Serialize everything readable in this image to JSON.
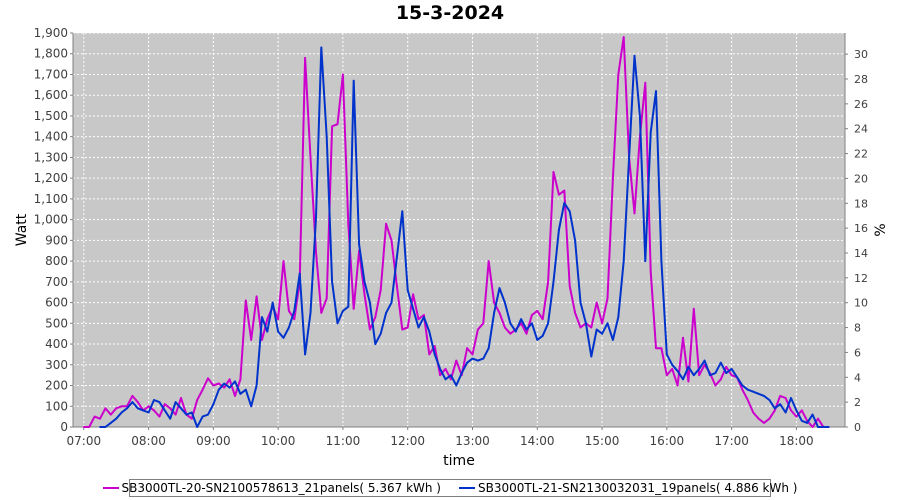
{
  "chart_data": {
    "type": "line",
    "title": "15-3-2024",
    "xlabel": "time",
    "ylabel": "Watt",
    "y2label": "%",
    "x_ticks": [
      "07:00",
      "08:00",
      "09:00",
      "10:00",
      "11:00",
      "12:00",
      "13:00",
      "14:00",
      "15:00",
      "16:00",
      "17:00",
      "18:00"
    ],
    "y_ticks": [
      "0",
      "100",
      "200",
      "300",
      "400",
      "500",
      "600",
      "700",
      "800",
      "900",
      "1,000",
      "1,100",
      "1,200",
      "1,300",
      "1,400",
      "1,500",
      "1,600",
      "1,700",
      "1,800",
      "1,900"
    ],
    "y2_ticks": [
      "0",
      "2",
      "4",
      "6",
      "8",
      "10",
      "12",
      "14",
      "16",
      "18",
      "20",
      "22",
      "24",
      "26",
      "28",
      "30"
    ],
    "xlim": [
      "06:50",
      "18:45"
    ],
    "ylim": [
      0,
      1900
    ],
    "y2lim": [
      0,
      31.7
    ],
    "grid": true,
    "legend_position": "bottom",
    "background_color": "#c8c8c8",
    "series": [
      {
        "name": "SB3000TL-20-SN2100578613_21panels( 5.367 kWh )",
        "color": "#cc00cc",
        "points": [
          [
            "07:00",
            0
          ],
          [
            "07:05",
            0
          ],
          [
            "07:10",
            50
          ],
          [
            "07:15",
            40
          ],
          [
            "07:20",
            90
          ],
          [
            "07:25",
            60
          ],
          [
            "07:30",
            90
          ],
          [
            "07:35",
            100
          ],
          [
            "07:40",
            100
          ],
          [
            "07:45",
            150
          ],
          [
            "07:50",
            120
          ],
          [
            "07:55",
            80
          ],
          [
            "08:00",
            100
          ],
          [
            "08:05",
            80
          ],
          [
            "08:10",
            50
          ],
          [
            "08:15",
            110
          ],
          [
            "08:20",
            90
          ],
          [
            "08:25",
            60
          ],
          [
            "08:30",
            140
          ],
          [
            "08:35",
            60
          ],
          [
            "08:40",
            40
          ],
          [
            "08:45",
            130
          ],
          [
            "08:50",
            180
          ],
          [
            "08:55",
            235
          ],
          [
            "09:00",
            200
          ],
          [
            "09:05",
            210
          ],
          [
            "09:10",
            190
          ],
          [
            "09:15",
            230
          ],
          [
            "09:20",
            150
          ],
          [
            "09:25",
            230
          ],
          [
            "09:30",
            610
          ],
          [
            "09:35",
            420
          ],
          [
            "09:40",
            630
          ],
          [
            "09:45",
            420
          ],
          [
            "09:50",
            520
          ],
          [
            "09:55",
            580
          ],
          [
            "10:00",
            520
          ],
          [
            "10:05",
            800
          ],
          [
            "10:10",
            560
          ],
          [
            "10:15",
            520
          ],
          [
            "10:20",
            700
          ],
          [
            "10:25",
            1780
          ],
          [
            "10:30",
            1300
          ],
          [
            "10:35",
            850
          ],
          [
            "10:40",
            550
          ],
          [
            "10:45",
            620
          ],
          [
            "10:50",
            1450
          ],
          [
            "10:55",
            1460
          ],
          [
            "11:00",
            1700
          ],
          [
            "11:05",
            980
          ],
          [
            "11:10",
            570
          ],
          [
            "11:15",
            850
          ],
          [
            "11:20",
            640
          ],
          [
            "11:25",
            470
          ],
          [
            "11:30",
            530
          ],
          [
            "11:35",
            660
          ],
          [
            "11:40",
            980
          ],
          [
            "11:45",
            900
          ],
          [
            "11:50",
            680
          ],
          [
            "11:55",
            470
          ],
          [
            "12:00",
            480
          ],
          [
            "12:05",
            640
          ],
          [
            "12:10",
            520
          ],
          [
            "12:15",
            540
          ],
          [
            "12:20",
            350
          ],
          [
            "12:25",
            390
          ],
          [
            "12:30",
            250
          ],
          [
            "12:35",
            280
          ],
          [
            "12:40",
            230
          ],
          [
            "12:45",
            320
          ],
          [
            "12:50",
            250
          ],
          [
            "12:55",
            380
          ],
          [
            "13:00",
            350
          ],
          [
            "13:05",
            470
          ],
          [
            "13:10",
            500
          ],
          [
            "13:15",
            800
          ],
          [
            "13:20",
            600
          ],
          [
            "13:25",
            550
          ],
          [
            "13:30",
            480
          ],
          [
            "13:35",
            450
          ],
          [
            "13:40",
            470
          ],
          [
            "13:45",
            500
          ],
          [
            "13:50",
            450
          ],
          [
            "13:55",
            540
          ],
          [
            "14:00",
            560
          ],
          [
            "14:05",
            520
          ],
          [
            "14:10",
            700
          ],
          [
            "14:15",
            1230
          ],
          [
            "14:20",
            1120
          ],
          [
            "14:25",
            1140
          ],
          [
            "14:30",
            680
          ],
          [
            "14:35",
            550
          ],
          [
            "14:40",
            480
          ],
          [
            "14:45",
            500
          ],
          [
            "14:50",
            480
          ],
          [
            "14:55",
            600
          ],
          [
            "15:00",
            500
          ],
          [
            "15:05",
            620
          ],
          [
            "15:10",
            1200
          ],
          [
            "15:15",
            1700
          ],
          [
            "15:20",
            1880
          ],
          [
            "15:25",
            1300
          ],
          [
            "15:30",
            1030
          ],
          [
            "15:35",
            1400
          ],
          [
            "15:40",
            1660
          ],
          [
            "15:45",
            750
          ],
          [
            "15:50",
            380
          ],
          [
            "15:55",
            380
          ],
          [
            "16:00",
            250
          ],
          [
            "16:05",
            280
          ],
          [
            "16:10",
            200
          ],
          [
            "16:15",
            430
          ],
          [
            "16:20",
            220
          ],
          [
            "16:25",
            570
          ],
          [
            "16:30",
            250
          ],
          [
            "16:35",
            300
          ],
          [
            "16:40",
            260
          ],
          [
            "16:45",
            200
          ],
          [
            "16:50",
            230
          ],
          [
            "16:55",
            290
          ],
          [
            "17:00",
            250
          ],
          [
            "17:05",
            240
          ],
          [
            "17:10",
            180
          ],
          [
            "17:15",
            130
          ],
          [
            "17:20",
            70
          ],
          [
            "17:25",
            40
          ],
          [
            "17:30",
            20
          ],
          [
            "17:35",
            40
          ],
          [
            "17:40",
            80
          ],
          [
            "17:45",
            150
          ],
          [
            "17:50",
            140
          ],
          [
            "17:55",
            80
          ],
          [
            "18:00",
            50
          ],
          [
            "18:05",
            80
          ],
          [
            "18:10",
            30
          ],
          [
            "18:15",
            0
          ],
          [
            "18:20",
            40
          ],
          [
            "18:25",
            0
          ],
          [
            "18:30",
            0
          ]
        ]
      },
      {
        "name": "SB3000TL-21-SN2130032031_19panels( 4.886 kWh )",
        "color": "#0033cc",
        "points": [
          [
            "07:15",
            0
          ],
          [
            "07:20",
            0
          ],
          [
            "07:25",
            20
          ],
          [
            "07:30",
            40
          ],
          [
            "07:35",
            70
          ],
          [
            "07:40",
            90
          ],
          [
            "07:45",
            120
          ],
          [
            "07:50",
            90
          ],
          [
            "07:55",
            80
          ],
          [
            "08:00",
            70
          ],
          [
            "08:05",
            130
          ],
          [
            "08:10",
            120
          ],
          [
            "08:15",
            80
          ],
          [
            "08:20",
            40
          ],
          [
            "08:25",
            120
          ],
          [
            "08:30",
            90
          ],
          [
            "08:35",
            60
          ],
          [
            "08:40",
            70
          ],
          [
            "08:45",
            0
          ],
          [
            "08:50",
            50
          ],
          [
            "08:55",
            60
          ],
          [
            "09:00",
            110
          ],
          [
            "09:05",
            180
          ],
          [
            "09:10",
            210
          ],
          [
            "09:15",
            190
          ],
          [
            "09:20",
            220
          ],
          [
            "09:25",
            160
          ],
          [
            "09:30",
            180
          ],
          [
            "09:35",
            100
          ],
          [
            "09:40",
            200
          ],
          [
            "09:45",
            530
          ],
          [
            "09:50",
            460
          ],
          [
            "09:55",
            600
          ],
          [
            "10:00",
            460
          ],
          [
            "10:05",
            430
          ],
          [
            "10:10",
            480
          ],
          [
            "10:15",
            560
          ],
          [
            "10:20",
            740
          ],
          [
            "10:25",
            350
          ],
          [
            "10:30",
            550
          ],
          [
            "10:35",
            1000
          ],
          [
            "10:40",
            1830
          ],
          [
            "10:45",
            1400
          ],
          [
            "10:50",
            700
          ],
          [
            "10:55",
            500
          ],
          [
            "11:00",
            560
          ],
          [
            "11:05",
            580
          ],
          [
            "11:10",
            1670
          ],
          [
            "11:15",
            880
          ],
          [
            "11:20",
            700
          ],
          [
            "11:25",
            600
          ],
          [
            "11:30",
            400
          ],
          [
            "11:35",
            450
          ],
          [
            "11:40",
            550
          ],
          [
            "11:45",
            600
          ],
          [
            "11:50",
            820
          ],
          [
            "11:55",
            1040
          ],
          [
            "12:00",
            660
          ],
          [
            "12:05",
            570
          ],
          [
            "12:10",
            480
          ],
          [
            "12:15",
            530
          ],
          [
            "12:20",
            460
          ],
          [
            "12:25",
            350
          ],
          [
            "12:30",
            280
          ],
          [
            "12:35",
            230
          ],
          [
            "12:40",
            250
          ],
          [
            "12:45",
            200
          ],
          [
            "12:50",
            260
          ],
          [
            "12:55",
            310
          ],
          [
            "13:00",
            330
          ],
          [
            "13:05",
            320
          ],
          [
            "13:10",
            330
          ],
          [
            "13:15",
            380
          ],
          [
            "13:20",
            550
          ],
          [
            "13:25",
            670
          ],
          [
            "13:30",
            600
          ],
          [
            "13:35",
            500
          ],
          [
            "13:40",
            460
          ],
          [
            "13:45",
            520
          ],
          [
            "13:50",
            470
          ],
          [
            "13:55",
            500
          ],
          [
            "14:00",
            420
          ],
          [
            "14:05",
            440
          ],
          [
            "14:10",
            500
          ],
          [
            "14:15",
            700
          ],
          [
            "14:20",
            950
          ],
          [
            "14:25",
            1080
          ],
          [
            "14:30",
            1040
          ],
          [
            "14:35",
            900
          ],
          [
            "14:40",
            600
          ],
          [
            "14:45",
            500
          ],
          [
            "14:50",
            340
          ],
          [
            "14:55",
            470
          ],
          [
            "15:00",
            450
          ],
          [
            "15:05",
            500
          ],
          [
            "15:10",
            420
          ],
          [
            "15:15",
            530
          ],
          [
            "15:20",
            800
          ],
          [
            "15:25",
            1300
          ],
          [
            "15:30",
            1790
          ],
          [
            "15:35",
            1500
          ],
          [
            "15:40",
            800
          ],
          [
            "15:45",
            1420
          ],
          [
            "15:50",
            1620
          ],
          [
            "15:55",
            800
          ],
          [
            "16:00",
            350
          ],
          [
            "16:05",
            300
          ],
          [
            "16:10",
            270
          ],
          [
            "16:15",
            230
          ],
          [
            "16:20",
            290
          ],
          [
            "16:25",
            250
          ],
          [
            "16:30",
            280
          ],
          [
            "16:35",
            320
          ],
          [
            "16:40",
            250
          ],
          [
            "16:45",
            260
          ],
          [
            "16:50",
            310
          ],
          [
            "16:55",
            260
          ],
          [
            "17:00",
            280
          ],
          [
            "17:05",
            240
          ],
          [
            "17:10",
            200
          ],
          [
            "17:15",
            180
          ],
          [
            "17:20",
            170
          ],
          [
            "17:25",
            160
          ],
          [
            "17:30",
            150
          ],
          [
            "17:35",
            130
          ],
          [
            "17:40",
            90
          ],
          [
            "17:45",
            110
          ],
          [
            "17:50",
            70
          ],
          [
            "17:55",
            140
          ],
          [
            "18:00",
            80
          ],
          [
            "18:05",
            30
          ],
          [
            "18:10",
            20
          ],
          [
            "18:15",
            60
          ],
          [
            "18:20",
            0
          ],
          [
            "18:25",
            0
          ],
          [
            "18:30",
            0
          ]
        ]
      }
    ]
  }
}
